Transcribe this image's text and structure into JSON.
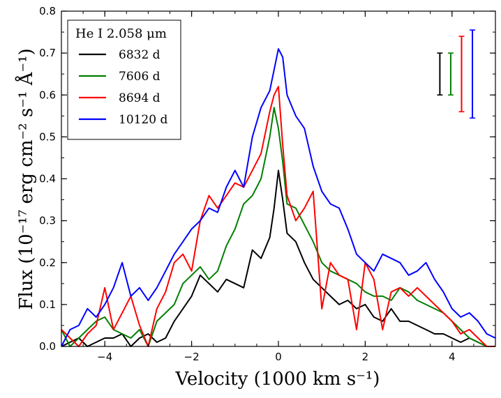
{
  "chart_data": {
    "type": "line",
    "title": "",
    "xlabel": "Velocity (1000 km s⁻¹)",
    "ylabel": "Flux (10⁻¹⁷ erg cm⁻² s⁻¹ Å⁻¹)",
    "xlim": [
      -5,
      5
    ],
    "ylim": [
      0,
      0.8
    ],
    "xticks": [
      -4,
      -2,
      0,
      2,
      4
    ],
    "yticks": [
      0.0,
      0.1,
      0.2,
      0.3,
      0.4,
      0.5,
      0.6,
      0.7,
      0.8
    ],
    "xtick_labels": [
      "−4",
      "−2",
      "0",
      "2",
      "4"
    ],
    "ytick_labels": [
      "0.0",
      "0.1",
      "0.2",
      "0.3",
      "0.4",
      "0.5",
      "0.6",
      "0.7",
      "0.8"
    ],
    "legend": {
      "title": "He I 2.058 μm",
      "position": "top-left"
    },
    "series": [
      {
        "name": "6832 d",
        "color": "#000000",
        "x": [
          -5.0,
          -4.8,
          -4.6,
          -4.4,
          -4.2,
          -4.0,
          -3.8,
          -3.6,
          -3.4,
          -3.2,
          -3.0,
          -2.8,
          -2.6,
          -2.4,
          -2.2,
          -2.0,
          -1.8,
          -1.6,
          -1.4,
          -1.2,
          -1.0,
          -0.8,
          -0.6,
          -0.4,
          -0.2,
          -0.1,
          0.0,
          0.1,
          0.2,
          0.4,
          0.6,
          0.8,
          1.0,
          1.2,
          1.4,
          1.6,
          1.8,
          2.0,
          2.2,
          2.4,
          2.6,
          2.8,
          3.0,
          3.2,
          3.4,
          3.6,
          3.8,
          4.0,
          4.2,
          4.4,
          4.6,
          4.8,
          5.0
        ],
        "values": [
          0.0,
          0.01,
          0.02,
          0.0,
          0.01,
          0.02,
          0.02,
          0.03,
          0.0,
          0.02,
          0.03,
          0.01,
          0.02,
          0.06,
          0.09,
          0.12,
          0.17,
          0.15,
          0.13,
          0.16,
          0.15,
          0.14,
          0.23,
          0.21,
          0.26,
          0.33,
          0.42,
          0.35,
          0.27,
          0.25,
          0.2,
          0.16,
          0.14,
          0.12,
          0.1,
          0.11,
          0.09,
          0.1,
          0.07,
          0.06,
          0.09,
          0.06,
          0.06,
          0.05,
          0.04,
          0.03,
          0.03,
          0.02,
          0.01,
          0.02,
          0.01,
          0.0,
          0.0
        ]
      },
      {
        "name": "7606 d",
        "color": "#007f00",
        "x": [
          -5.0,
          -4.8,
          -4.6,
          -4.4,
          -4.2,
          -4.0,
          -3.8,
          -3.6,
          -3.4,
          -3.2,
          -3.0,
          -2.8,
          -2.6,
          -2.4,
          -2.2,
          -2.0,
          -1.8,
          -1.6,
          -1.4,
          -1.2,
          -1.0,
          -0.8,
          -0.6,
          -0.4,
          -0.2,
          -0.1,
          0.0,
          0.1,
          0.2,
          0.4,
          0.6,
          0.8,
          1.0,
          1.2,
          1.4,
          1.6,
          1.8,
          2.0,
          2.2,
          2.4,
          2.6,
          2.8,
          3.0,
          3.2,
          3.4,
          3.6,
          3.8,
          4.0,
          4.2,
          4.4,
          4.6,
          4.8,
          5.0
        ],
        "values": [
          0.04,
          0.0,
          0.02,
          0.04,
          0.06,
          0.07,
          0.04,
          0.03,
          0.02,
          0.04,
          0.0,
          0.06,
          0.08,
          0.1,
          0.15,
          0.17,
          0.19,
          0.16,
          0.18,
          0.24,
          0.28,
          0.34,
          0.36,
          0.4,
          0.5,
          0.57,
          0.52,
          0.44,
          0.34,
          0.33,
          0.29,
          0.25,
          0.2,
          0.18,
          0.17,
          0.16,
          0.15,
          0.13,
          0.12,
          0.12,
          0.11,
          0.14,
          0.13,
          0.11,
          0.1,
          0.09,
          0.08,
          0.06,
          0.04,
          0.02,
          0.01,
          0.0,
          0.0
        ]
      },
      {
        "name": "8694 d",
        "color": "#ff0000",
        "x": [
          -5.0,
          -4.8,
          -4.6,
          -4.4,
          -4.2,
          -4.0,
          -3.8,
          -3.6,
          -3.4,
          -3.2,
          -3.0,
          -2.8,
          -2.6,
          -2.4,
          -2.2,
          -2.0,
          -1.8,
          -1.6,
          -1.4,
          -1.2,
          -1.0,
          -0.8,
          -0.6,
          -0.4,
          -0.2,
          -0.1,
          0.0,
          0.1,
          0.2,
          0.4,
          0.6,
          0.8,
          1.0,
          1.2,
          1.4,
          1.6,
          1.8,
          2.0,
          2.2,
          2.4,
          2.6,
          2.8,
          3.0,
          3.2,
          3.4,
          3.6,
          3.8,
          4.0,
          4.2,
          4.4,
          4.6,
          4.8,
          5.0
        ],
        "values": [
          0.04,
          0.02,
          0.0,
          0.03,
          0.05,
          0.14,
          0.04,
          0.08,
          0.12,
          0.05,
          0.0,
          0.09,
          0.13,
          0.2,
          0.22,
          0.18,
          0.3,
          0.36,
          0.33,
          0.36,
          0.39,
          0.38,
          0.42,
          0.46,
          0.56,
          0.6,
          0.62,
          0.48,
          0.36,
          0.3,
          0.33,
          0.37,
          0.09,
          0.2,
          0.17,
          0.16,
          0.04,
          0.2,
          0.16,
          0.04,
          0.13,
          0.14,
          0.12,
          0.14,
          0.12,
          0.1,
          0.08,
          0.06,
          0.03,
          0.04,
          0.02,
          0.0,
          0.0
        ]
      },
      {
        "name": "10120 d",
        "color": "#0000ff",
        "x": [
          -5.0,
          -4.8,
          -4.6,
          -4.4,
          -4.2,
          -4.0,
          -3.8,
          -3.6,
          -3.4,
          -3.2,
          -3.0,
          -2.8,
          -2.6,
          -2.4,
          -2.2,
          -2.0,
          -1.8,
          -1.6,
          -1.4,
          -1.2,
          -1.0,
          -0.8,
          -0.6,
          -0.4,
          -0.2,
          -0.1,
          0.0,
          0.1,
          0.2,
          0.4,
          0.6,
          0.8,
          1.0,
          1.2,
          1.4,
          1.6,
          1.8,
          2.0,
          2.2,
          2.4,
          2.6,
          2.8,
          3.0,
          3.2,
          3.4,
          3.6,
          3.8,
          4.0,
          4.2,
          4.4,
          4.6,
          4.8,
          5.0
        ],
        "values": [
          0.0,
          0.04,
          0.05,
          0.09,
          0.07,
          0.1,
          0.14,
          0.2,
          0.12,
          0.14,
          0.11,
          0.14,
          0.18,
          0.22,
          0.25,
          0.28,
          0.3,
          0.33,
          0.32,
          0.38,
          0.42,
          0.38,
          0.5,
          0.57,
          0.61,
          0.66,
          0.71,
          0.69,
          0.6,
          0.55,
          0.52,
          0.43,
          0.37,
          0.34,
          0.33,
          0.28,
          0.22,
          0.2,
          0.18,
          0.22,
          0.21,
          0.2,
          0.17,
          0.18,
          0.2,
          0.16,
          0.13,
          0.09,
          0.07,
          0.08,
          0.06,
          0.03,
          0.02
        ]
      }
    ],
    "error_bars": [
      {
        "series": "6832 d",
        "color": "#000000",
        "x": 3.72,
        "low": 0.6,
        "high": 0.7
      },
      {
        "series": "7606 d",
        "color": "#007f00",
        "x": 3.97,
        "low": 0.6,
        "high": 0.7
      },
      {
        "series": "8694 d",
        "color": "#ff0000",
        "x": 4.22,
        "low": 0.56,
        "high": 0.74
      },
      {
        "series": "10120 d",
        "color": "#0000ff",
        "x": 4.47,
        "low": 0.545,
        "high": 0.755
      }
    ]
  }
}
